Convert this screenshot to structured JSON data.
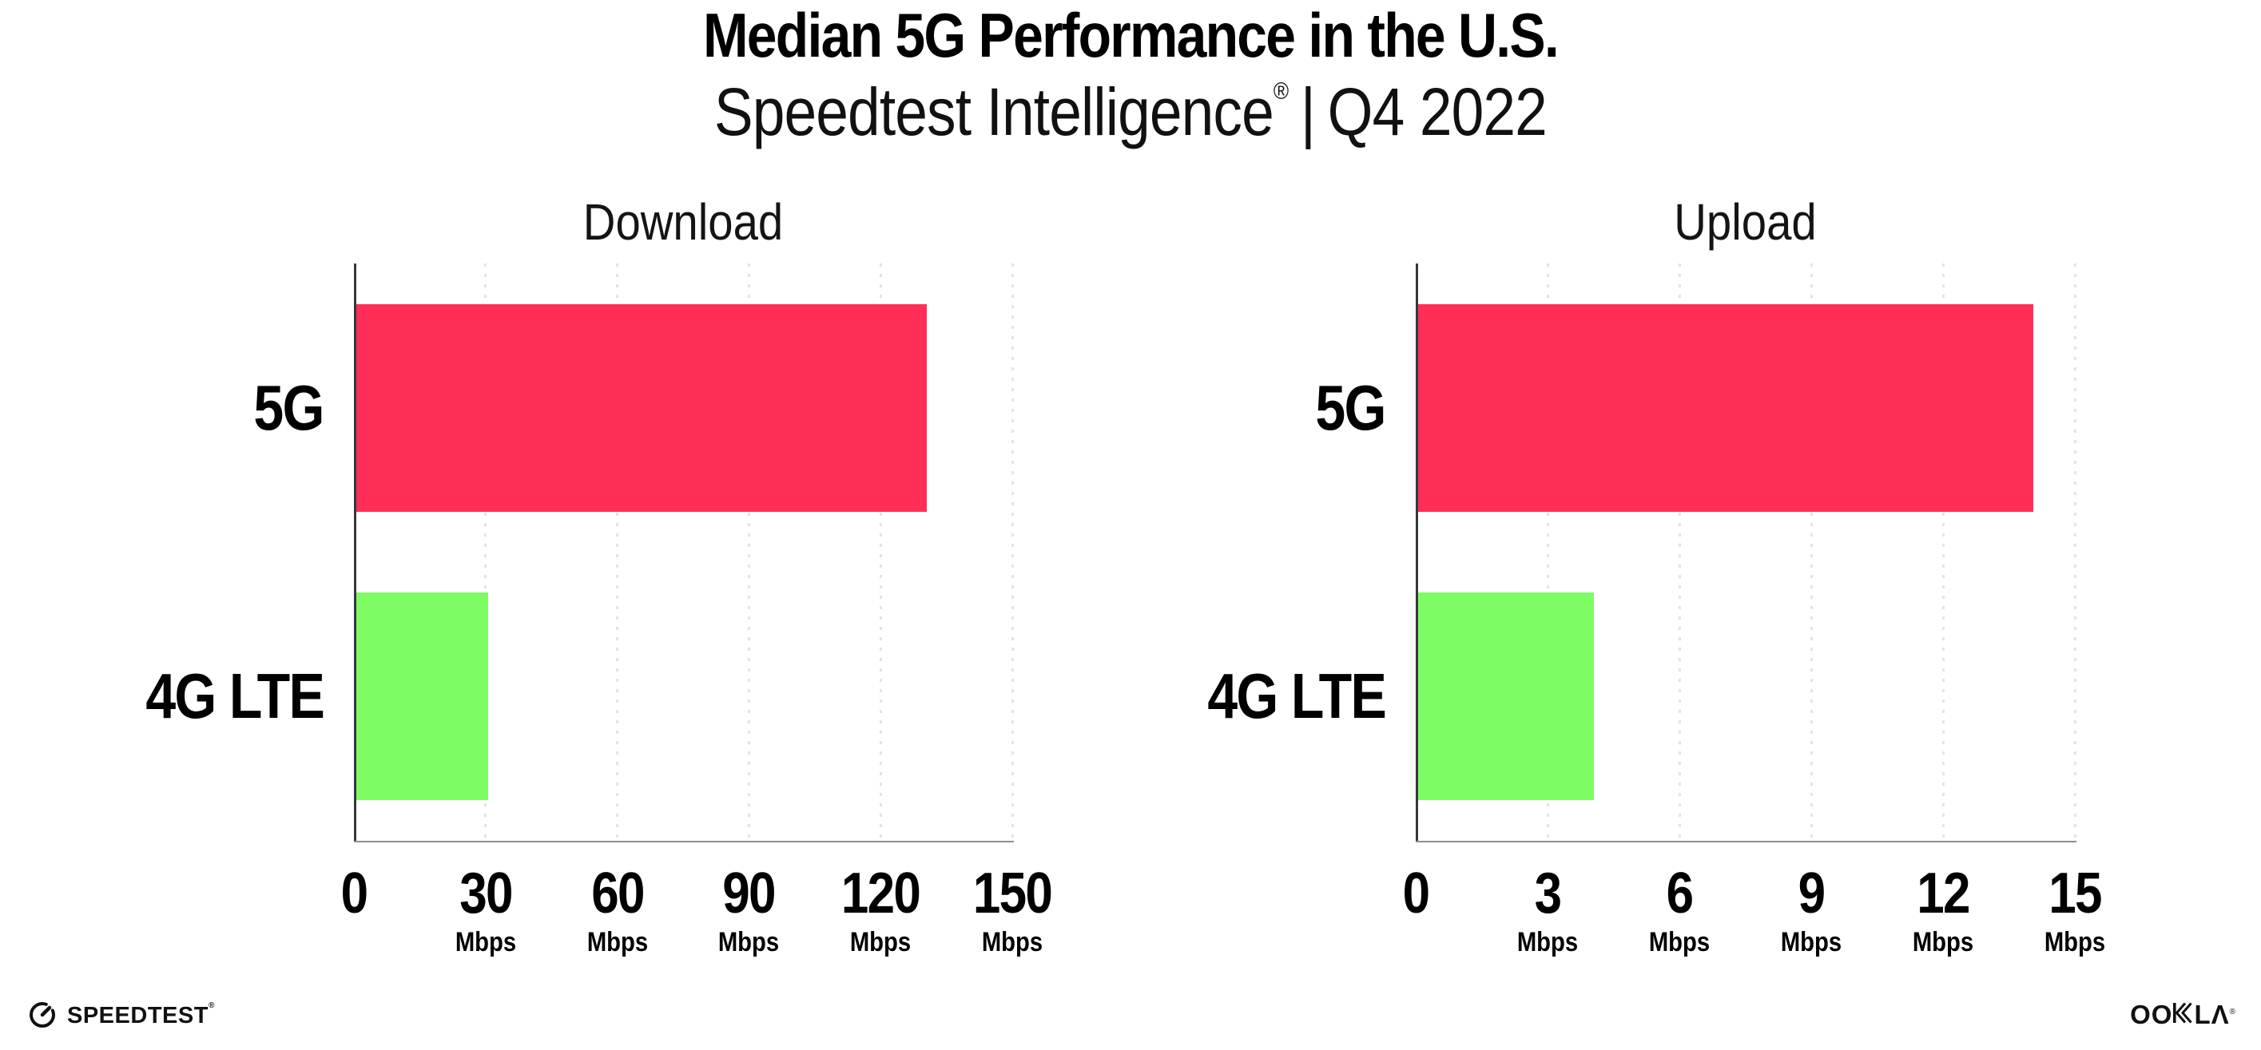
{
  "header": {
    "title": "Median 5G Performance in the U.S.",
    "subtitle_brand": "Speedtest Intelligence",
    "subtitle_reg": "®",
    "subtitle_separator": "|",
    "subtitle_period": "Q4 2022"
  },
  "chart_data": [
    {
      "type": "bar",
      "orientation": "horizontal",
      "title": "Download",
      "categories": [
        "5G",
        "4G LTE"
      ],
      "values": [
        130,
        30
      ],
      "unit": "Mbps",
      "xlim": [
        0,
        150
      ],
      "xticks": [
        0,
        30,
        60,
        90,
        120,
        150
      ],
      "tick_unit_label": "Mbps",
      "bar_colors": [
        "#ff2e56",
        "#7dfc64"
      ],
      "grid": "dotted-vertical",
      "legend": "none"
    },
    {
      "type": "bar",
      "orientation": "horizontal",
      "title": "Upload",
      "categories": [
        "5G",
        "4G LTE"
      ],
      "values": [
        14,
        4
      ],
      "unit": "Mbps",
      "xlim": [
        0,
        15
      ],
      "xticks": [
        0,
        3,
        6,
        9,
        12,
        15
      ],
      "tick_unit_label": "Mbps",
      "bar_colors": [
        "#ff2e56",
        "#7dfc64"
      ],
      "grid": "dotted-vertical",
      "legend": "none"
    }
  ],
  "colors": {
    "bar_5g": "#ff2e56",
    "bar_4g_lte": "#7dfc64",
    "y_axis_line": "#37373f",
    "x_axis_line": "#8f8f95",
    "gridline": "#e3e3ec",
    "background": "#ffffff",
    "text": "#000000"
  },
  "footer": {
    "speedtest": {
      "icon": "gauge-icon",
      "text": "SPEEDTEST",
      "reg": "®"
    },
    "ookla": {
      "text": "OOKLA",
      "text_left": "OO",
      "k_icon": "ookla-k-icon",
      "text_right": "LΛ",
      "reg": "®"
    }
  }
}
